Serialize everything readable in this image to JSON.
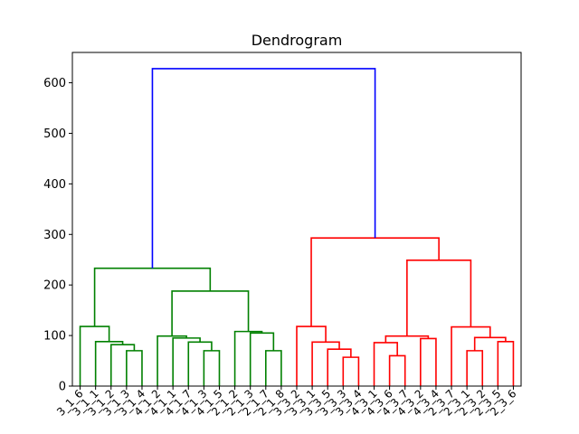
{
  "chart_data": {
    "type": "dendrogram",
    "title": "Dendrogram",
    "xlabel": "",
    "ylabel": "",
    "ylim": [
      0,
      660
    ],
    "yticks": [
      0,
      100,
      200,
      300,
      400,
      500,
      600
    ],
    "grid": false,
    "leaves": [
      "3_1_6",
      "3_1_1",
      "3_1_2",
      "3_1_3",
      "3_1_4",
      "4_1_2",
      "4_1_1",
      "4_1_7",
      "4_1_3",
      "4_1_5",
      "2_1_2",
      "2_1_3",
      "2_1_7",
      "2_1_8",
      "3_3_2",
      "3_3_1",
      "3_3_5",
      "3_3_3",
      "3_3_4",
      "4_3_1",
      "4_3_6",
      "4_3_7",
      "4_3_2",
      "4_3_4",
      "2_3_7",
      "2_3_1",
      "2_3_2",
      "2_3_5",
      "2_3_6"
    ],
    "merges": [
      {
        "id": "a",
        "left": "L3",
        "right": "L4",
        "height": 70,
        "color": "#008000"
      },
      {
        "id": "b",
        "left": "L2",
        "right": "a",
        "height": 82,
        "color": "#008000"
      },
      {
        "id": "c",
        "left": "L1",
        "right": "b",
        "height": 88,
        "color": "#008000"
      },
      {
        "id": "d",
        "left": "L0",
        "right": "c",
        "height": 118,
        "color": "#008000"
      },
      {
        "id": "e",
        "left": "L8",
        "right": "L9",
        "height": 70,
        "color": "#008000"
      },
      {
        "id": "f",
        "left": "L7",
        "right": "e",
        "height": 87,
        "color": "#008000"
      },
      {
        "id": "g",
        "left": "L6",
        "right": "f",
        "height": 95,
        "color": "#008000"
      },
      {
        "id": "h",
        "left": "L5",
        "right": "g",
        "height": 99,
        "color": "#008000"
      },
      {
        "id": "i",
        "left": "L12",
        "right": "L13",
        "height": 70,
        "color": "#008000"
      },
      {
        "id": "j",
        "left": "L11",
        "right": "i",
        "height": 105,
        "color": "#008000"
      },
      {
        "id": "k",
        "left": "L10",
        "right": "j",
        "height": 108,
        "color": "#008000"
      },
      {
        "id": "l",
        "left": "h",
        "right": "k",
        "height": 188,
        "color": "#008000"
      },
      {
        "id": "m",
        "left": "d",
        "right": "l",
        "height": 233,
        "color": "#008000"
      },
      {
        "id": "n",
        "left": "L17",
        "right": "L18",
        "height": 57,
        "color": "#ff0000"
      },
      {
        "id": "o",
        "left": "L16",
        "right": "n",
        "height": 73,
        "color": "#ff0000"
      },
      {
        "id": "p",
        "left": "L15",
        "right": "o",
        "height": 87,
        "color": "#ff0000"
      },
      {
        "id": "q",
        "left": "L14",
        "right": "p",
        "height": 118,
        "color": "#ff0000"
      },
      {
        "id": "r",
        "left": "L20",
        "right": "L21",
        "height": 60,
        "color": "#ff0000"
      },
      {
        "id": "s",
        "left": "L19",
        "right": "r",
        "height": 86,
        "color": "#ff0000"
      },
      {
        "id": "t",
        "left": "L22",
        "right": "L23",
        "height": 94,
        "color": "#ff0000"
      },
      {
        "id": "u",
        "left": "s",
        "right": "t",
        "height": 99,
        "color": "#ff0000"
      },
      {
        "id": "v",
        "left": "L25",
        "right": "L26",
        "height": 70,
        "color": "#ff0000"
      },
      {
        "id": "w",
        "left": "L27",
        "right": "L28",
        "height": 88,
        "color": "#ff0000"
      },
      {
        "id": "x",
        "left": "v",
        "right": "w",
        "height": 96,
        "color": "#ff0000"
      },
      {
        "id": "y",
        "left": "L24",
        "right": "x",
        "height": 117,
        "color": "#ff0000"
      },
      {
        "id": "z",
        "left": "u",
        "right": "y",
        "height": 249,
        "color": "#ff0000"
      },
      {
        "id": "aa",
        "left": "q",
        "right": "z",
        "height": 293,
        "color": "#ff0000"
      },
      {
        "id": "root",
        "left": "m",
        "right": "aa",
        "height": 628,
        "color": "#0000ff"
      }
    ]
  }
}
